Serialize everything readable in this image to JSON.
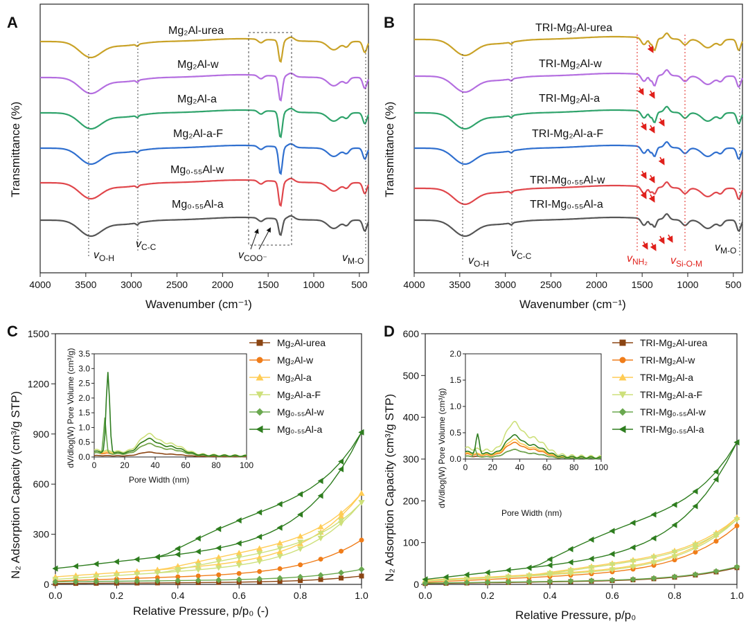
{
  "colors": {
    "urea": "#c9a227",
    "w": "#b46ee0",
    "a": "#2fa36b",
    "aF": "#2f6fcf",
    "mgw": "#e0464b",
    "mga": "#555555",
    "red": "#e0201b",
    "iso_urea": "#8b4513",
    "iso_w": "#f07d1a",
    "iso_a": "#ffcc55",
    "iso_aF": "#cde07a",
    "iso_mgw": "#6aa84f",
    "iso_mga": "#2e7d1f"
  },
  "panels": {
    "A": {
      "letter": "A"
    },
    "B": {
      "letter": "B"
    },
    "C": {
      "letter": "C"
    },
    "D": {
      "letter": "D"
    }
  },
  "chart_data": [
    {
      "id": "A",
      "type": "line",
      "title": "",
      "xlabel": "Wavenumber (cm⁻¹)",
      "ylabel": "Transmittance (%)",
      "xlim": [
        4000,
        400
      ],
      "xticks": [
        "4000",
        "3500",
        "3000",
        "2500",
        "2000",
        "1500",
        "1000",
        "500"
      ],
      "series": [
        {
          "name": "Mg₂Al-urea",
          "color_key": "urea"
        },
        {
          "name": "Mg₂Al-w",
          "color_key": "w"
        },
        {
          "name": "Mg₂Al-a",
          "color_key": "a"
        },
        {
          "name": "Mg₂Al-a-F",
          "color_key": "aF"
        },
        {
          "name": "Mg₀.₅₅Al-w",
          "color_key": "mgw"
        },
        {
          "name": "Mg₀.₅₅Al-a",
          "color_key": "mga"
        }
      ],
      "annotations": {
        "vOH": "v",
        "vOH_sub": "O-H",
        "vCC": "v",
        "vCC_sub": "C-C",
        "vCOO": "v",
        "vCOO_sub": "COO⁻",
        "vMO": "v",
        "vMO_sub": "M-O"
      }
    },
    {
      "id": "B",
      "type": "line",
      "xlabel": "Wavenumber (cm⁻¹)",
      "ylabel": "Transmittance (%)",
      "xlim": [
        4000,
        400
      ],
      "xticks": [
        "4000",
        "3500",
        "3000",
        "2500",
        "2000",
        "1500",
        "1000",
        "500"
      ],
      "series": [
        {
          "name": "TRI-Mg₂Al-urea",
          "color_key": "urea"
        },
        {
          "name": "TRI-Mg₂Al-w",
          "color_key": "w"
        },
        {
          "name": "TRI-Mg₂Al-a",
          "color_key": "a"
        },
        {
          "name": "TRI-Mg₂Al-a-F",
          "color_key": "aF"
        },
        {
          "name": "TRI-Mg₀.₅₅Al-w",
          "color_key": "mgw"
        },
        {
          "name": "TRI-Mg₀.₅₅Al-a",
          "color_key": "mga"
        }
      ],
      "annotations": {
        "vOH": "v",
        "vOH_sub": "O-H",
        "vCC": "v",
        "vCC_sub": "C-C",
        "vNH2": "v",
        "vNH2_sub": "NH₂",
        "vSiOM": "v",
        "vSiOM_sub": "Si-O-M",
        "vMO": "v",
        "vMO_sub": "M-O"
      }
    },
    {
      "id": "C",
      "type": "scatter",
      "xlabel": "Relative Pressure, p/p₀ (-)",
      "ylabel": "N₂ Adsorption Capacity (cm³/g STP)",
      "xlim": [
        0,
        1
      ],
      "ylim": [
        0,
        1500
      ],
      "xticks": [
        "0.0",
        "0.2",
        "0.4",
        "0.6",
        "0.8",
        "1.0"
      ],
      "yticks": [
        "0",
        "300",
        "600",
        "900",
        "1200",
        "1500"
      ],
      "legend": [
        "Mg₂Al-urea",
        "Mg₂Al-w",
        "Mg₂Al-a",
        "Mg₂Al-a-F",
        "Mg₀.₅₅Al-w",
        "Mg₀.₅₅Al-a"
      ],
      "series": [
        {
          "name": "Mg₂Al-urea",
          "low": 5,
          "high": 50,
          "hyst": 0.0
        },
        {
          "name": "Mg₂Al-w",
          "low": 20,
          "high": 265,
          "hyst": 0.0
        },
        {
          "name": "Mg₂Al-a",
          "low": 45,
          "high": 545,
          "hyst": 0.6
        },
        {
          "name": "Mg₂Al-a-F",
          "low": 30,
          "high": 490,
          "hyst": 0.6
        },
        {
          "name": "Mg₀.₅₅Al-w",
          "low": 15,
          "high": 90,
          "hyst": 0.0
        },
        {
          "name": "Mg₀.₅₅Al-a",
          "low": 95,
          "high": 910,
          "hyst": 1.0
        }
      ],
      "inset": {
        "xlabel": "Pore Width (nm)",
        "ylabel": "dV/dlog(W) Pore Volume (cm³/g)",
        "xlim": [
          0,
          100
        ],
        "ylim": [
          0,
          3.5
        ],
        "xticks": [
          "0",
          "20",
          "40",
          "60",
          "80",
          "100"
        ],
        "yticks": [
          "0.0",
          "0.5",
          "1.0",
          "1.5",
          "2.0",
          "2.5",
          "3.0",
          "3.5"
        ]
      }
    },
    {
      "id": "D",
      "type": "scatter",
      "xlabel": "Relative Pressure, p/p₀",
      "ylabel": "N₂ Adsorption Capacity (cm³/g STP)",
      "xlim": [
        0,
        1
      ],
      "ylim": [
        0,
        600
      ],
      "xticks": [
        "0.0",
        "0.2",
        "0.4",
        "0.6",
        "0.8",
        "1.0"
      ],
      "yticks": [
        "0",
        "100",
        "200",
        "300",
        "400",
        "500",
        "600"
      ],
      "legend": [
        "TRI-Mg₂Al-urea",
        "TRI-Mg₂Al-w",
        "TRI-Mg₂Al-a",
        "TRI-Mg₂Al-a-F",
        "TRI-Mg₀.₅₅Al-w",
        "TRI-Mg₀.₅₅Al-a"
      ],
      "series": [
        {
          "name": "TRI-Mg₂Al-urea",
          "low": 2,
          "high": 40,
          "hyst": 0.0
        },
        {
          "name": "TRI-Mg₂Al-w",
          "low": 5,
          "high": 140,
          "hyst": 0.0
        },
        {
          "name": "TRI-Mg₂Al-a",
          "low": 10,
          "high": 160,
          "hyst": 0.5
        },
        {
          "name": "TRI-Mg₂Al-a-F",
          "low": 8,
          "high": 155,
          "hyst": 0.5
        },
        {
          "name": "TRI-Mg₀.₅₅Al-w",
          "low": 3,
          "high": 42,
          "hyst": 0.0
        },
        {
          "name": "TRI-Mg₀.₅₅Al-a",
          "low": 12,
          "high": 340,
          "hyst": 1.0
        }
      ],
      "inset": {
        "xlabel": "Pore Width (nm)",
        "ylabel": "dV/dlog(W) Pore Volume (cm³/g)",
        "xlim": [
          0,
          100
        ],
        "ylim": [
          0,
          2.0
        ],
        "xticks": [
          "0",
          "20",
          "40",
          "60",
          "80",
          "100"
        ],
        "yticks": [
          "0.0",
          "0.5",
          "1.0",
          "1.5",
          "2.0"
        ]
      }
    }
  ]
}
